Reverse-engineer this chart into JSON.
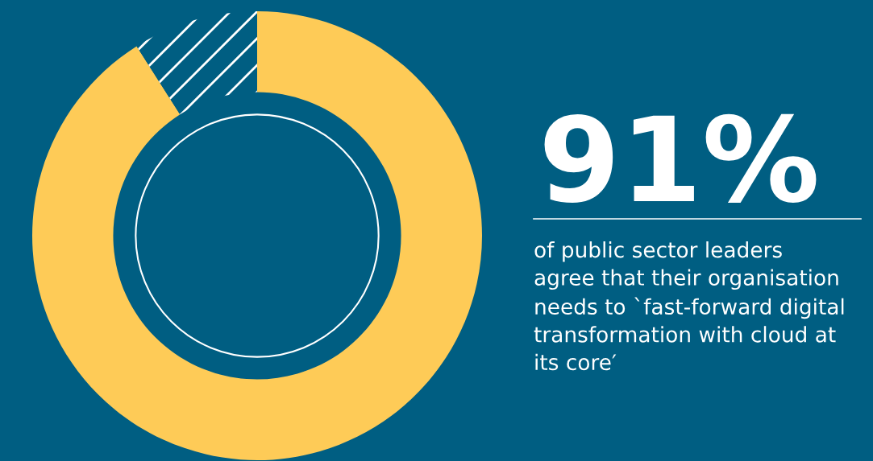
{
  "chart_data": {
    "type": "donut",
    "title": "91%",
    "subtitle": "of public sector leaders\nagree that their organisation\nneeds to `fast-forward digital\ntransformation with cloud at\nits core′",
    "categories": [
      null,
      null
    ],
    "values": [
      91,
      9
    ],
    "colors": [
      "#fecb57",
      "#005e82"
    ],
    "legend": false
  }
}
